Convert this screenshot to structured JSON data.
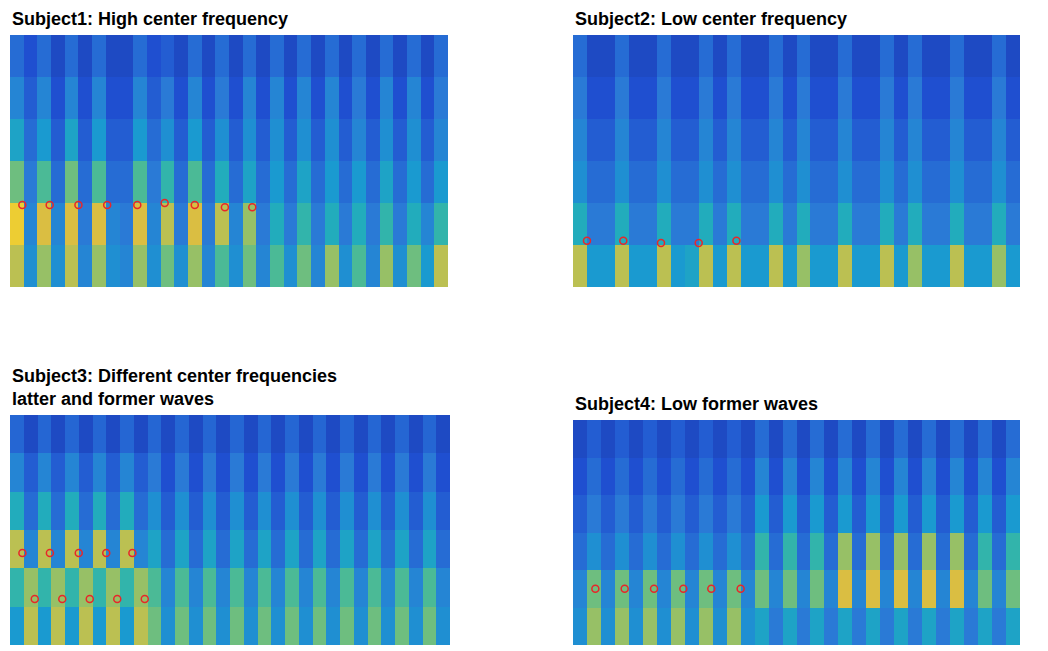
{
  "chart_data": [
    {
      "type": "heatmap",
      "title": "Subject1: High center frequency",
      "xlim": [
        -0.5,
        31.5
      ],
      "ylim": [
        -0.5,
        5.5
      ],
      "zlim": [
        0,
        1
      ],
      "tick_labels": false,
      "grid": false,
      "z": [
        [
          0.85,
          0.45,
          0.8,
          0.45,
          0.85,
          0.4,
          0.8,
          0.45,
          0.4,
          0.8,
          0.45,
          0.75,
          0.45,
          0.8,
          0.4,
          0.7,
          0.45,
          0.75,
          0.4,
          0.7,
          0.45,
          0.75,
          0.4,
          0.8,
          0.45,
          0.7,
          0.4,
          0.8,
          0.45,
          0.75,
          0.5,
          0.85
        ],
        [
          0.95,
          0.4,
          0.9,
          0.4,
          0.9,
          0.35,
          0.9,
          0.4,
          0.35,
          0.9,
          0.4,
          0.85,
          0.35,
          0.9,
          0.35,
          0.85,
          0.4,
          0.8,
          0.35,
          0.6,
          0.35,
          0.65,
          0.35,
          0.6,
          0.35,
          0.6,
          0.35,
          0.65,
          0.35,
          0.6,
          0.4,
          0.65
        ],
        [
          0.75,
          0.35,
          0.7,
          0.3,
          0.75,
          0.3,
          0.7,
          0.3,
          0.3,
          0.7,
          0.35,
          0.65,
          0.3,
          0.7,
          0.3,
          0.6,
          0.3,
          0.55,
          0.3,
          0.5,
          0.3,
          0.55,
          0.3,
          0.5,
          0.3,
          0.5,
          0.3,
          0.55,
          0.3,
          0.5,
          0.3,
          0.5
        ],
        [
          0.55,
          0.3,
          0.5,
          0.25,
          0.55,
          0.25,
          0.5,
          0.25,
          0.25,
          0.5,
          0.3,
          0.45,
          0.25,
          0.5,
          0.25,
          0.45,
          0.25,
          0.45,
          0.25,
          0.45,
          0.25,
          0.45,
          0.25,
          0.45,
          0.25,
          0.4,
          0.25,
          0.45,
          0.25,
          0.45,
          0.25,
          0.4
        ],
        [
          0.4,
          0.25,
          0.4,
          0.2,
          0.4,
          0.2,
          0.4,
          0.2,
          0.2,
          0.4,
          0.25,
          0.35,
          0.2,
          0.4,
          0.2,
          0.35,
          0.2,
          0.4,
          0.2,
          0.4,
          0.2,
          0.4,
          0.2,
          0.4,
          0.2,
          0.35,
          0.2,
          0.4,
          0.2,
          0.4,
          0.2,
          0.35
        ],
        [
          0.3,
          0.2,
          0.3,
          0.15,
          0.3,
          0.15,
          0.3,
          0.15,
          0.15,
          0.3,
          0.2,
          0.25,
          0.15,
          0.3,
          0.15,
          0.3,
          0.15,
          0.3,
          0.15,
          0.3,
          0.15,
          0.3,
          0.15,
          0.3,
          0.15,
          0.3,
          0.15,
          0.3,
          0.15,
          0.3,
          0.15,
          0.3
        ]
      ],
      "series": [
        {
          "type": "scatter",
          "color": "#e8262a",
          "marker": "circle-open",
          "x": [
            0.4,
            2.4,
            4.5,
            6.6,
            8.8,
            10.8,
            13.0,
            15.2,
            17.2
          ],
          "y": [
            1.45,
            1.45,
            1.45,
            1.45,
            1.45,
            1.5,
            1.45,
            1.4,
            1.4
          ]
        }
      ]
    },
    {
      "type": "heatmap",
      "title": "Subject2: Low center frequency",
      "xlim": [
        -0.5,
        31.5
      ],
      "ylim": [
        -0.5,
        5.5
      ],
      "zlim": [
        0,
        1
      ],
      "tick_labels": false,
      "grid": false,
      "z": [
        [
          0.85,
          0.5,
          0.5,
          0.85,
          0.5,
          0.5,
          0.85,
          0.5,
          0.55,
          0.85,
          0.5,
          0.85,
          0.5,
          0.5,
          0.85,
          0.5,
          0.8,
          0.5,
          0.5,
          0.85,
          0.5,
          0.5,
          0.85,
          0.5,
          0.8,
          0.5,
          0.5,
          0.85,
          0.5,
          0.5,
          0.8,
          0.5
        ],
        [
          0.6,
          0.35,
          0.35,
          0.6,
          0.35,
          0.35,
          0.6,
          0.35,
          0.35,
          0.6,
          0.35,
          0.6,
          0.35,
          0.35,
          0.6,
          0.35,
          0.6,
          0.35,
          0.35,
          0.6,
          0.35,
          0.35,
          0.6,
          0.35,
          0.6,
          0.35,
          0.35,
          0.6,
          0.35,
          0.35,
          0.6,
          0.35
        ],
        [
          0.45,
          0.3,
          0.3,
          0.45,
          0.3,
          0.3,
          0.45,
          0.3,
          0.3,
          0.45,
          0.3,
          0.45,
          0.3,
          0.3,
          0.45,
          0.3,
          0.45,
          0.3,
          0.3,
          0.45,
          0.3,
          0.3,
          0.45,
          0.3,
          0.45,
          0.3,
          0.3,
          0.45,
          0.3,
          0.3,
          0.45,
          0.3
        ],
        [
          0.4,
          0.25,
          0.25,
          0.4,
          0.25,
          0.25,
          0.4,
          0.25,
          0.25,
          0.4,
          0.25,
          0.4,
          0.25,
          0.25,
          0.4,
          0.25,
          0.4,
          0.25,
          0.25,
          0.4,
          0.25,
          0.25,
          0.4,
          0.25,
          0.4,
          0.25,
          0.25,
          0.4,
          0.25,
          0.25,
          0.4,
          0.25
        ],
        [
          0.35,
          0.2,
          0.2,
          0.35,
          0.2,
          0.2,
          0.35,
          0.2,
          0.2,
          0.35,
          0.2,
          0.35,
          0.2,
          0.2,
          0.35,
          0.2,
          0.35,
          0.2,
          0.2,
          0.35,
          0.2,
          0.2,
          0.35,
          0.2,
          0.35,
          0.2,
          0.2,
          0.35,
          0.2,
          0.2,
          0.35,
          0.2
        ],
        [
          0.3,
          0.15,
          0.15,
          0.3,
          0.15,
          0.15,
          0.3,
          0.15,
          0.15,
          0.3,
          0.15,
          0.3,
          0.15,
          0.15,
          0.3,
          0.15,
          0.3,
          0.15,
          0.15,
          0.3,
          0.15,
          0.15,
          0.3,
          0.15,
          0.3,
          0.15,
          0.15,
          0.3,
          0.15,
          0.15,
          0.3,
          0.15
        ]
      ],
      "series": [
        {
          "type": "scatter",
          "color": "#e8262a",
          "marker": "circle-open",
          "x": [
            0.5,
            3.1,
            5.8,
            8.5,
            11.2
          ],
          "y": [
            0.6,
            0.6,
            0.55,
            0.55,
            0.6
          ]
        }
      ]
    },
    {
      "type": "heatmap",
      "title": "Subject3: Different center frequencies latter and former waves",
      "xlim": [
        -0.5,
        31.5
      ],
      "ylim": [
        -0.5,
        5.5
      ],
      "zlim": [
        0,
        1
      ],
      "tick_labels": false,
      "grid": false,
      "z": [
        [
          0.5,
          0.85,
          0.5,
          0.85,
          0.5,
          0.85,
          0.5,
          0.85,
          0.5,
          0.85,
          0.75,
          0.45,
          0.75,
          0.45,
          0.75,
          0.45,
          0.75,
          0.45,
          0.75,
          0.45,
          0.75,
          0.45,
          0.75,
          0.45,
          0.75,
          0.45,
          0.75,
          0.45,
          0.75,
          0.45,
          0.75,
          0.45
        ],
        [
          0.65,
          0.8,
          0.65,
          0.8,
          0.65,
          0.8,
          0.65,
          0.8,
          0.65,
          0.8,
          0.7,
          0.4,
          0.7,
          0.4,
          0.7,
          0.4,
          0.7,
          0.4,
          0.7,
          0.4,
          0.7,
          0.4,
          0.7,
          0.4,
          0.7,
          0.4,
          0.7,
          0.4,
          0.7,
          0.4,
          0.7,
          0.4
        ],
        [
          0.85,
          0.4,
          0.85,
          0.4,
          0.85,
          0.4,
          0.85,
          0.4,
          0.85,
          0.4,
          0.55,
          0.3,
          0.55,
          0.3,
          0.55,
          0.3,
          0.55,
          0.3,
          0.55,
          0.3,
          0.55,
          0.3,
          0.55,
          0.3,
          0.55,
          0.3,
          0.55,
          0.3,
          0.55,
          0.3,
          0.55,
          0.3
        ],
        [
          0.6,
          0.3,
          0.6,
          0.3,
          0.6,
          0.3,
          0.6,
          0.3,
          0.6,
          0.3,
          0.45,
          0.25,
          0.45,
          0.25,
          0.45,
          0.25,
          0.45,
          0.25,
          0.45,
          0.25,
          0.45,
          0.25,
          0.45,
          0.25,
          0.45,
          0.25,
          0.45,
          0.25,
          0.45,
          0.25,
          0.45,
          0.25
        ],
        [
          0.4,
          0.25,
          0.4,
          0.25,
          0.4,
          0.25,
          0.4,
          0.25,
          0.4,
          0.25,
          0.35,
          0.2,
          0.35,
          0.2,
          0.35,
          0.2,
          0.35,
          0.2,
          0.35,
          0.2,
          0.35,
          0.2,
          0.35,
          0.2,
          0.35,
          0.2,
          0.35,
          0.2,
          0.35,
          0.2,
          0.35,
          0.2
        ],
        [
          0.28,
          0.15,
          0.28,
          0.15,
          0.28,
          0.15,
          0.28,
          0.15,
          0.28,
          0.15,
          0.28,
          0.15,
          0.28,
          0.15,
          0.28,
          0.15,
          0.28,
          0.15,
          0.28,
          0.15,
          0.28,
          0.15,
          0.28,
          0.15,
          0.28,
          0.15,
          0.28,
          0.15,
          0.28,
          0.15,
          0.28,
          0.15
        ]
      ],
      "series": [
        {
          "type": "scatter",
          "color": "#e8262a",
          "marker": "circle-open",
          "x": [
            0.4,
            2.4,
            4.5,
            6.5,
            8.4
          ],
          "y": [
            1.9,
            1.9,
            1.9,
            1.9,
            1.9
          ]
        },
        {
          "type": "scatter",
          "color": "#e8262a",
          "marker": "circle-open",
          "x": [
            1.3,
            3.3,
            5.3,
            7.3,
            9.3
          ],
          "y": [
            0.7,
            0.7,
            0.7,
            0.7,
            0.7
          ]
        }
      ]
    },
    {
      "type": "heatmap",
      "title": "Subject4: Low former waves",
      "xlim": [
        -0.5,
        31.5
      ],
      "ylim": [
        -0.5,
        5.5
      ],
      "zlim": [
        0,
        1
      ],
      "tick_labels": false,
      "grid": false,
      "z": [
        [
          0.45,
          0.8,
          0.45,
          0.8,
          0.45,
          0.8,
          0.45,
          0.8,
          0.45,
          0.8,
          0.45,
          0.8,
          0.45,
          0.55,
          0.35,
          0.55,
          0.35,
          0.55,
          0.35,
          0.55,
          0.35,
          0.55,
          0.35,
          0.55,
          0.35,
          0.55,
          0.35,
          0.55,
          0.35,
          0.55,
          0.35,
          0.55
        ],
        [
          0.4,
          0.75,
          0.4,
          0.75,
          0.4,
          0.75,
          0.4,
          0.75,
          0.4,
          0.75,
          0.4,
          0.75,
          0.4,
          0.75,
          0.4,
          0.75,
          0.4,
          0.75,
          0.4,
          0.9,
          0.4,
          0.9,
          0.4,
          0.9,
          0.4,
          0.9,
          0.4,
          0.9,
          0.4,
          0.75,
          0.4,
          0.75
        ],
        [
          0.3,
          0.45,
          0.3,
          0.45,
          0.3,
          0.45,
          0.3,
          0.45,
          0.3,
          0.45,
          0.3,
          0.45,
          0.3,
          0.65,
          0.3,
          0.65,
          0.3,
          0.65,
          0.3,
          0.8,
          0.3,
          0.8,
          0.3,
          0.8,
          0.3,
          0.8,
          0.3,
          0.8,
          0.3,
          0.65,
          0.3,
          0.65
        ],
        [
          0.25,
          0.35,
          0.25,
          0.35,
          0.25,
          0.35,
          0.25,
          0.35,
          0.25,
          0.35,
          0.25,
          0.35,
          0.25,
          0.5,
          0.25,
          0.5,
          0.25,
          0.5,
          0.25,
          0.5,
          0.25,
          0.5,
          0.25,
          0.5,
          0.25,
          0.5,
          0.25,
          0.5,
          0.25,
          0.5,
          0.25,
          0.5
        ],
        [
          0.2,
          0.3,
          0.2,
          0.3,
          0.2,
          0.3,
          0.2,
          0.3,
          0.2,
          0.3,
          0.2,
          0.3,
          0.2,
          0.4,
          0.2,
          0.4,
          0.2,
          0.4,
          0.2,
          0.4,
          0.2,
          0.4,
          0.2,
          0.4,
          0.2,
          0.4,
          0.2,
          0.4,
          0.2,
          0.4,
          0.2,
          0.4
        ],
        [
          0.15,
          0.25,
          0.15,
          0.25,
          0.15,
          0.25,
          0.15,
          0.25,
          0.15,
          0.25,
          0.15,
          0.25,
          0.15,
          0.3,
          0.15,
          0.3,
          0.15,
          0.3,
          0.15,
          0.3,
          0.15,
          0.3,
          0.15,
          0.3,
          0.15,
          0.3,
          0.15,
          0.3,
          0.15,
          0.3,
          0.15,
          0.3
        ]
      ],
      "series": [
        {
          "type": "scatter",
          "color": "#e8262a",
          "marker": "circle-open",
          "x": [
            1.1,
            3.2,
            5.3,
            7.4,
            9.4,
            11.5
          ],
          "y": [
            1.0,
            1.0,
            1.0,
            1.0,
            1.0,
            1.0
          ]
        }
      ]
    }
  ]
}
